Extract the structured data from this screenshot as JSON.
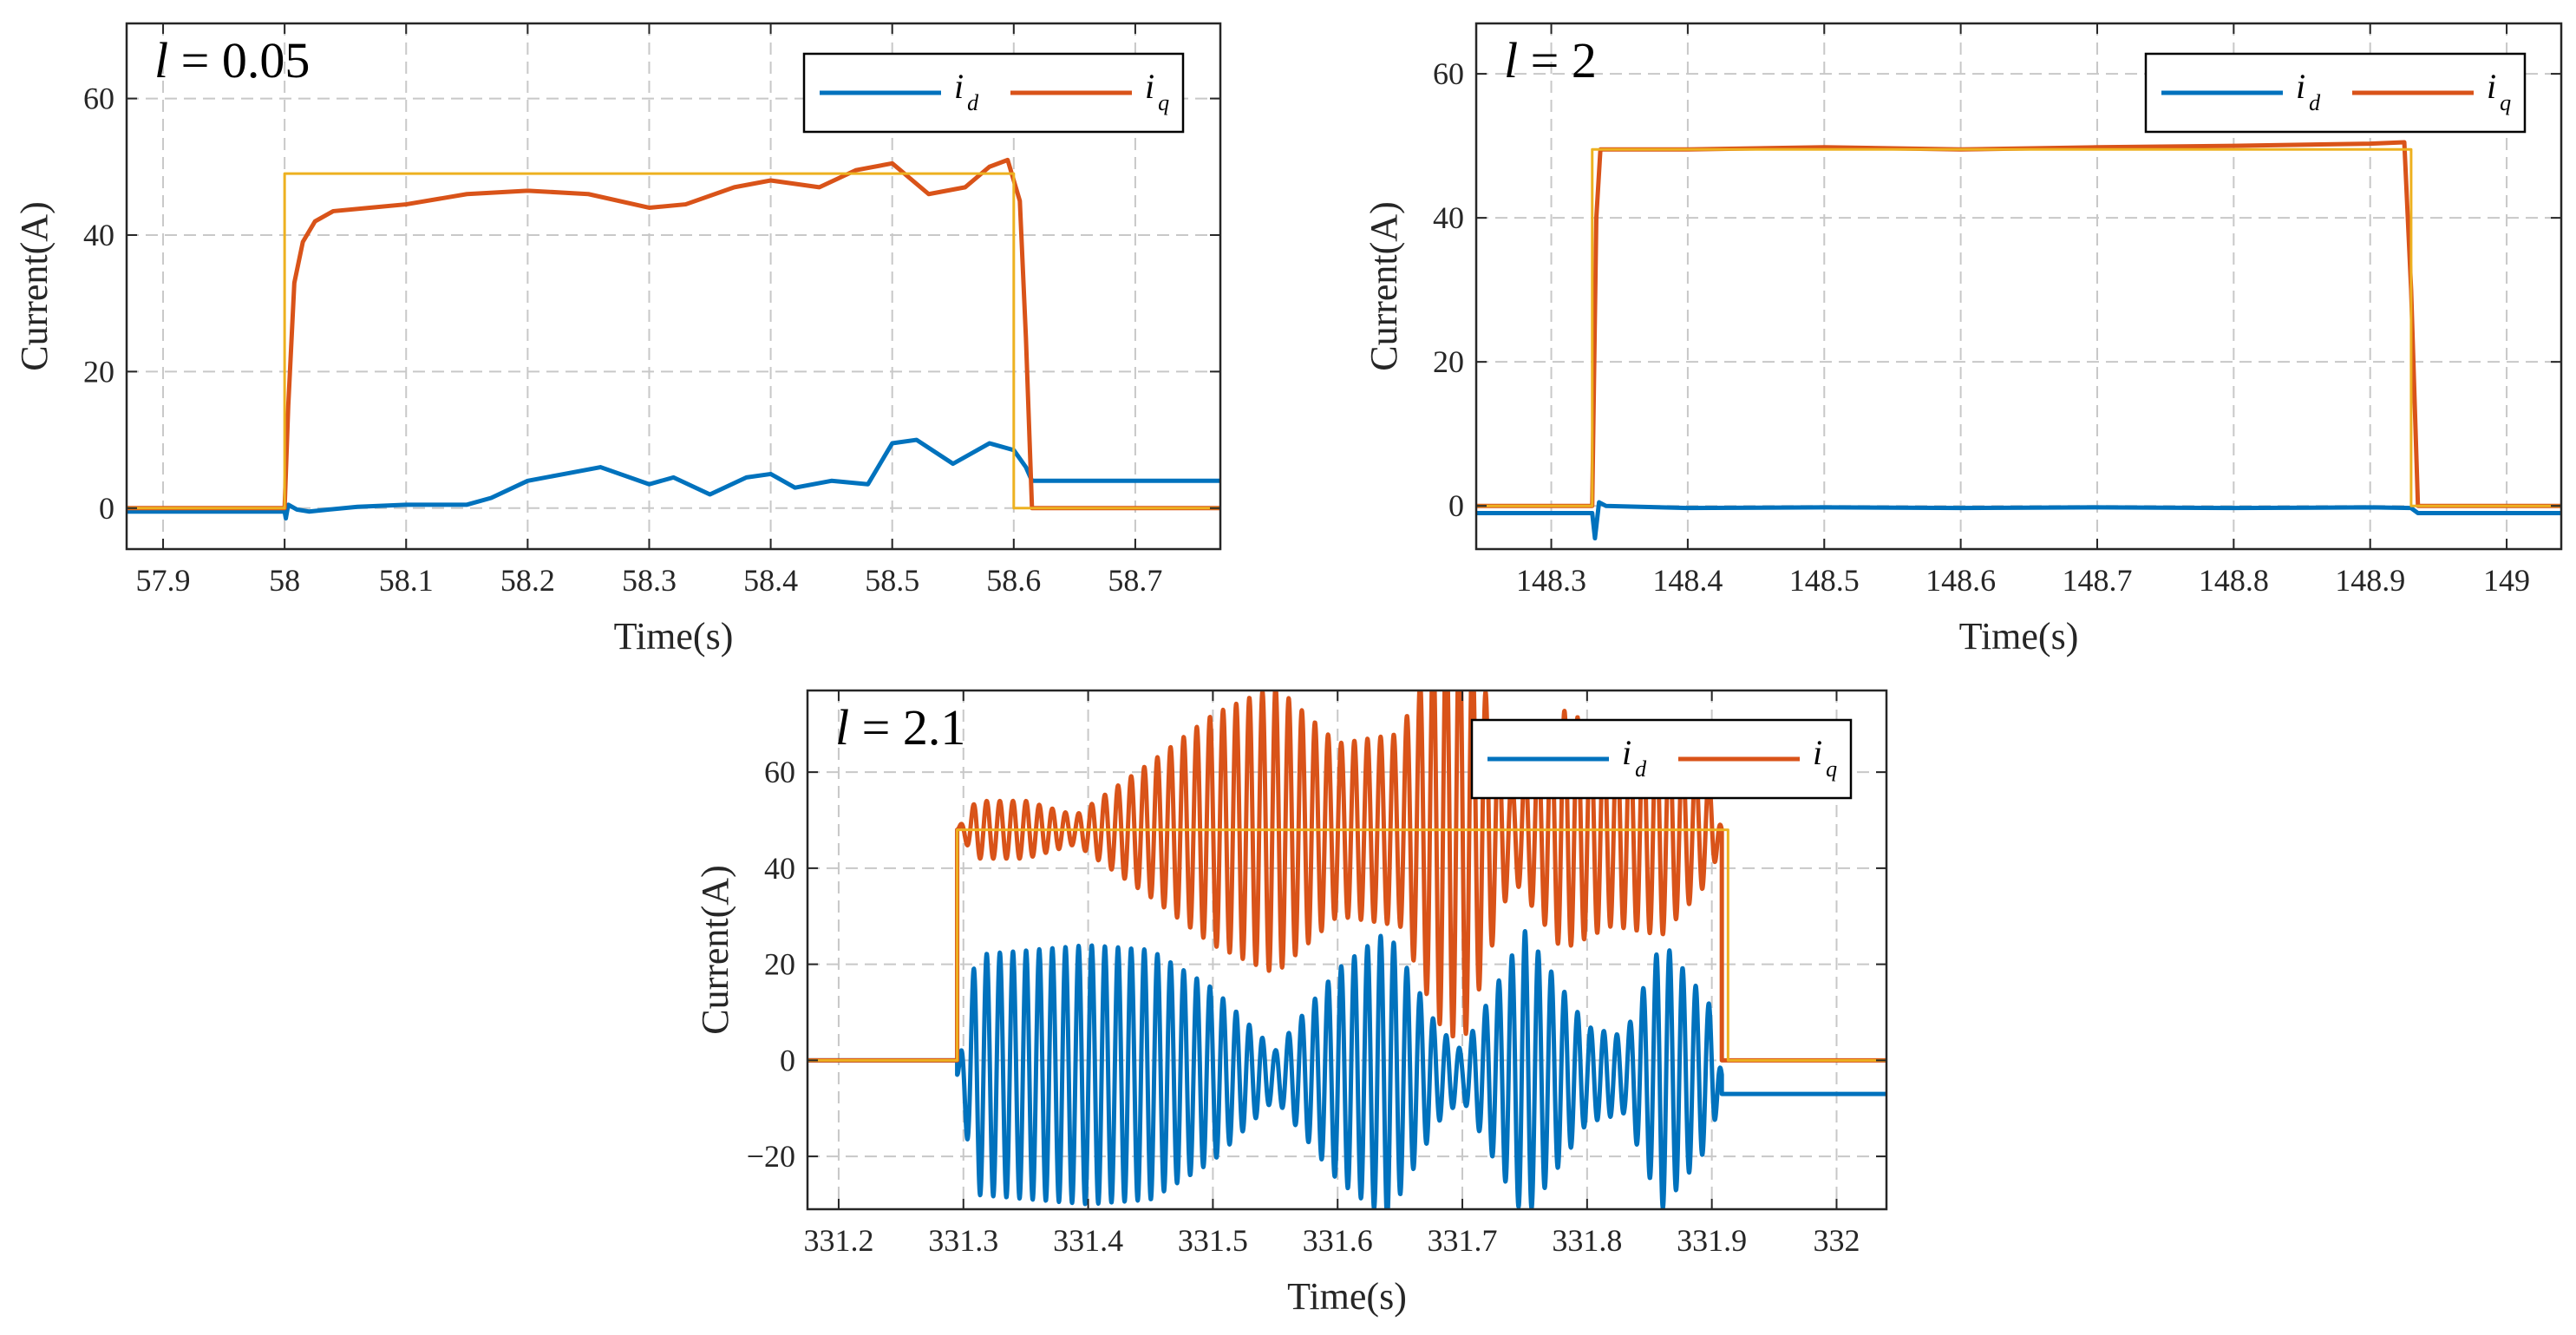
{
  "chart_data": [
    {
      "type": "line",
      "annotation": "l = 0.05",
      "xlabel": "Time(s)",
      "ylabel": "Current(A)",
      "xlim": [
        57.87,
        58.77
      ],
      "ylim": [
        -6,
        71
      ],
      "xticks": [
        57.9,
        58.0,
        58.1,
        58.2,
        58.3,
        58.4,
        58.5,
        58.6,
        58.7
      ],
      "xtick_labels": [
        "57.9",
        "58",
        "58.1",
        "58.2",
        "58.3",
        "58.4",
        "58.5",
        "58.6",
        "58.7"
      ],
      "yticks": [
        0,
        20,
        40,
        60
      ],
      "ytick_labels": [
        "0",
        "20",
        "40",
        "60"
      ],
      "grid": true,
      "legend_position": "top-right",
      "series": [
        {
          "name": "id",
          "label_main": "i",
          "label_sub": "d",
          "color": "#0072BD",
          "x": [
            57.87,
            58.0,
            58.001,
            58.003,
            58.01,
            58.02,
            58.06,
            58.1,
            58.15,
            58.17,
            58.2,
            58.23,
            58.26,
            58.3,
            58.32,
            58.35,
            58.38,
            58.4,
            58.42,
            58.45,
            58.48,
            58.5,
            58.52,
            58.55,
            58.58,
            58.6,
            58.61,
            58.615,
            58.77
          ],
          "y": [
            -0.5,
            -0.5,
            -1.5,
            0.5,
            -0.2,
            -0.5,
            0.2,
            0.5,
            0.5,
            1.5,
            4,
            5,
            6,
            3.5,
            4.5,
            2,
            4.5,
            5,
            3,
            4,
            3.5,
            9.5,
            10,
            6.5,
            9.5,
            8.5,
            6,
            4,
            4
          ]
        },
        {
          "name": "iq",
          "label_main": "i",
          "label_sub": "q",
          "color": "#D95319",
          "x": [
            57.87,
            58.0,
            58.003,
            58.008,
            58.015,
            58.025,
            58.04,
            58.07,
            58.1,
            58.15,
            58.2,
            58.25,
            58.3,
            58.33,
            58.37,
            58.4,
            58.44,
            58.47,
            58.5,
            58.53,
            58.56,
            58.58,
            58.595,
            58.605,
            58.61,
            58.615,
            58.77
          ],
          "y": [
            0,
            0,
            15,
            33,
            39,
            42,
            43.5,
            44,
            44.5,
            46,
            46.5,
            46,
            44,
            44.5,
            47,
            48,
            47,
            49.5,
            50.5,
            46,
            47,
            50,
            51,
            45,
            25,
            0,
            0
          ]
        },
        {
          "name": "ref",
          "color": "#EDB120",
          "x": [
            57.87,
            58.0,
            58.0,
            58.6,
            58.6,
            58.77
          ],
          "y": [
            0,
            0,
            49,
            49,
            0,
            0
          ]
        }
      ]
    },
    {
      "type": "line",
      "annotation": "l = 2",
      "xlabel": "Time(s)",
      "ylabel": "Current(A)",
      "xlim": [
        148.245,
        149.04
      ],
      "ylim": [
        -6,
        67
      ],
      "xticks": [
        148.3,
        148.4,
        148.5,
        148.6,
        148.7,
        148.8,
        148.9,
        149.0
      ],
      "xtick_labels": [
        "148.3",
        "148.4",
        "148.5",
        "148.6",
        "148.7",
        "148.8",
        "148.9",
        "149"
      ],
      "yticks": [
        0,
        20,
        40,
        60
      ],
      "ytick_labels": [
        "0",
        "20",
        "40",
        "60"
      ],
      "grid": true,
      "legend_position": "top-right",
      "series": [
        {
          "name": "id",
          "label_main": "i",
          "label_sub": "d",
          "color": "#0072BD",
          "x": [
            148.245,
            148.33,
            148.332,
            148.335,
            148.34,
            148.4,
            148.5,
            148.6,
            148.7,
            148.8,
            148.9,
            148.93,
            148.935,
            149.04
          ],
          "y": [
            -1,
            -1,
            -4.5,
            0.5,
            0,
            -0.3,
            -0.2,
            -0.3,
            -0.2,
            -0.3,
            -0.2,
            -0.3,
            -1,
            -1
          ]
        },
        {
          "name": "iq",
          "label_main": "i",
          "label_sub": "q",
          "color": "#D95319",
          "x": [
            148.245,
            148.33,
            148.333,
            148.336,
            148.4,
            148.5,
            148.6,
            148.7,
            148.8,
            148.9,
            148.925,
            148.93,
            148.935,
            149.04
          ],
          "y": [
            0,
            0,
            40,
            49.5,
            49.5,
            49.8,
            49.5,
            49.8,
            50,
            50.3,
            50.5,
            30,
            0,
            0
          ]
        },
        {
          "name": "ref",
          "color": "#EDB120",
          "x": [
            148.245,
            148.33,
            148.33,
            148.93,
            148.93,
            149.04
          ],
          "y": [
            0,
            0,
            49.5,
            49.5,
            0,
            0
          ]
        }
      ]
    },
    {
      "type": "line",
      "annotation": "l = 2.1",
      "xlabel": "Time(s)",
      "ylabel": "Current(A)",
      "xlim": [
        331.175,
        332.04
      ],
      "ylim": [
        -31,
        77
      ],
      "xticks": [
        331.2,
        331.3,
        331.4,
        331.5,
        331.6,
        331.7,
        331.8,
        331.9,
        332.0
      ],
      "xtick_labels": [
        "331.2",
        "331.3",
        "331.4",
        "331.5",
        "331.6",
        "331.7",
        "331.8",
        "331.9",
        "332"
      ],
      "yticks": [
        -20,
        0,
        20,
        40,
        60
      ],
      "ytick_labels": [
        "−20",
        "0",
        "20",
        "40",
        "60"
      ],
      "grid": true,
      "legend_position": "top-right",
      "series": [
        {
          "name": "id",
          "label_main": "i",
          "label_sub": "d",
          "color": "#0072BD",
          "kind": "oscillation",
          "t_start": 331.295,
          "t_end": 331.908,
          "frequency_hz": 95,
          "offset": -3,
          "amplitude_envelope": {
            "t": [
              331.295,
              331.31,
              331.4,
              331.45,
              331.5,
              331.55,
              331.6,
              331.64,
              331.68,
              331.7,
              331.75,
              331.8,
              331.83,
              331.86,
              331.9,
              331.908
            ],
            "a": [
              0,
              25,
              27,
              26,
              18,
              5,
              22,
              30,
              10,
              5,
              30,
              10,
              8,
              28,
              14,
              0
            ]
          },
          "before_value": 0,
          "after_value": -7
        },
        {
          "name": "iq",
          "label_main": "i",
          "label_sub": "q",
          "color": "#D95319",
          "kind": "oscillation",
          "t_start": 331.295,
          "t_end": 331.908,
          "frequency_hz": 95,
          "offset": 48,
          "amplitude_envelope": {
            "t": [
              331.295,
              331.31,
              331.35,
              331.39,
              331.45,
              331.5,
              331.55,
              331.6,
              331.65,
              331.68,
              331.7,
              331.74,
              331.78,
              331.82,
              331.86,
              331.9,
              331.908
            ],
            "a": [
              0,
              6,
              6,
              3,
              14,
              24,
              30,
              18,
              20,
              40,
              45,
              10,
              25,
              20,
              22,
              10,
              0
            ]
          },
          "before_value": 0,
          "after_value": 0
        },
        {
          "name": "ref",
          "color": "#EDB120",
          "x": [
            331.175,
            331.295,
            331.295,
            331.913,
            331.913,
            332.04
          ],
          "y": [
            0,
            0,
            48,
            48,
            0,
            0
          ]
        }
      ]
    }
  ]
}
